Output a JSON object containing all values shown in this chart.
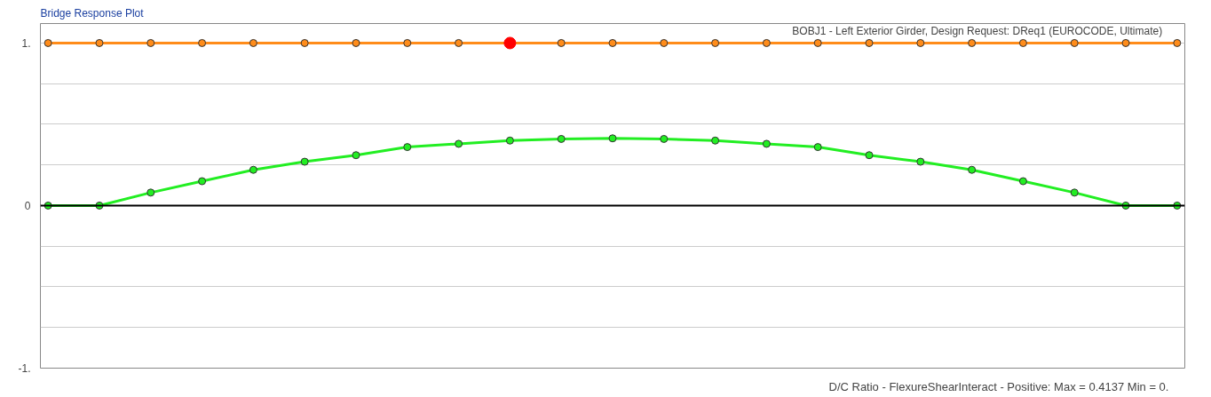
{
  "chart_data": {
    "type": "line",
    "title": "Bridge Response Plot",
    "annotations": [
      "BOBJ1 - Left Exterior Girder,  Design Request: DReq1  (EUROCODE, Ultimate)",
      "D/C Ratio - FlexureShearInteract - Positive:  Max = 0.4137     Min = 0."
    ],
    "categories": [
      null,
      null,
      null,
      null,
      null,
      null,
      null,
      null,
      null,
      null,
      null,
      null,
      null,
      null,
      null,
      null,
      null,
      null,
      null,
      null,
      null,
      null,
      null
    ],
    "series": [
      {
        "color": "#ff8c1a",
        "values": [
          1,
          1,
          1,
          1,
          1,
          1,
          1,
          1,
          1,
          1,
          1,
          1,
          1,
          1,
          1,
          1,
          1,
          1,
          1,
          1,
          1,
          1,
          1
        ]
      },
      {
        "color": "#22ee22",
        "values": [
          0,
          0,
          0.08,
          0.15,
          0.22,
          0.27,
          0.31,
          0.36,
          0.38,
          0.4,
          0.41,
          0.4137,
          0.41,
          0.4,
          0.38,
          0.36,
          0.31,
          0.27,
          0.22,
          0.15,
          0.08,
          0,
          0
        ]
      },
      {
        "type": "scatter",
        "color": "#ff0000",
        "values": [
          null,
          null,
          null,
          null,
          null,
          null,
          null,
          null,
          null,
          1,
          null,
          null,
          null,
          null,
          null,
          null,
          null,
          null,
          null,
          null,
          null,
          null,
          null
        ]
      }
    ],
    "ylim": [
      -1,
      1.12
    ],
    "yticks": [
      {
        "value": -1,
        "label": "-1."
      },
      {
        "value": -0.75,
        "label": null
      },
      {
        "value": -0.5,
        "label": null
      },
      {
        "value": -0.25,
        "label": null
      },
      {
        "value": 0,
        "label": "0"
      },
      {
        "value": 0.25,
        "label": null
      },
      {
        "value": 0.5,
        "label": null
      },
      {
        "value": 0.75,
        "label": null
      },
      {
        "value": 1,
        "label": "1."
      }
    ],
    "ref_lines": [
      {
        "axis": "y",
        "value": 0,
        "color": "#000000"
      }
    ],
    "grid": "y",
    "marker": "circle",
    "line_style": "solid",
    "tick_labels": "y"
  }
}
